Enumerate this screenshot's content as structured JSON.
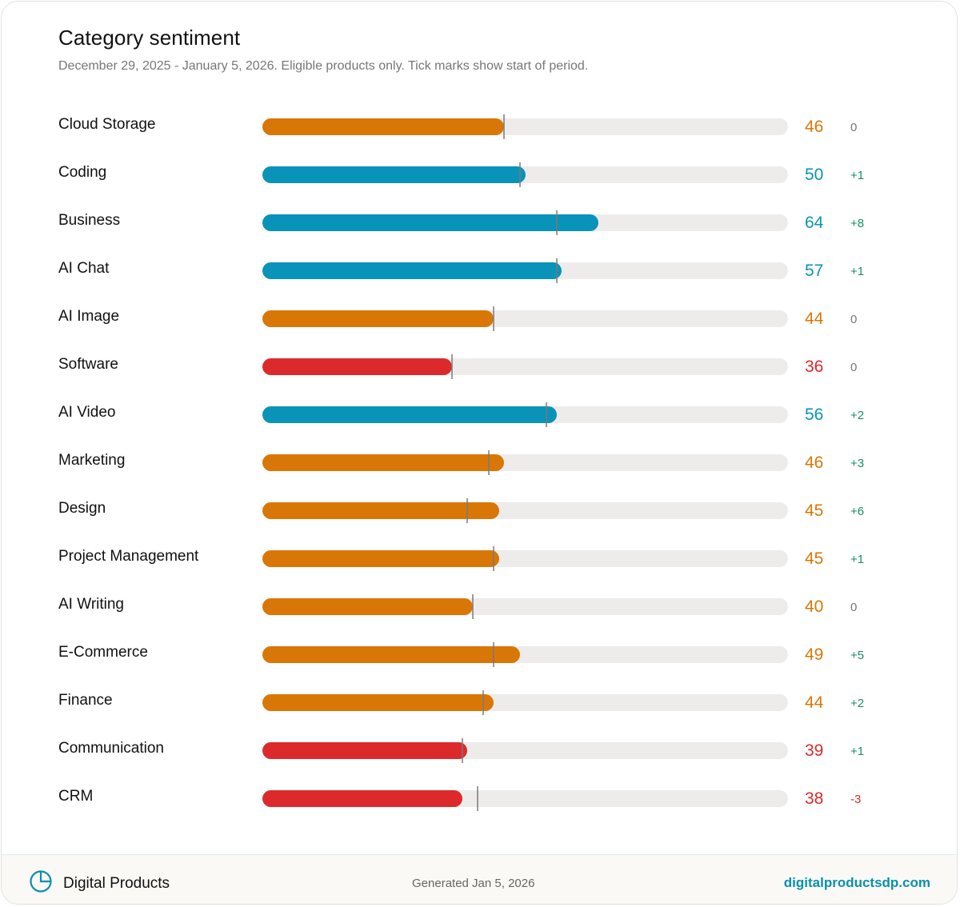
{
  "chart_data": {
    "type": "bar",
    "title": "Category sentiment",
    "subtitle": "December 29, 2025 - January 5, 2026. Eligible products only. Tick marks show start of period.",
    "xlim": [
      0,
      100
    ],
    "orientation": "horizontal",
    "rows": [
      {
        "category": "Cloud Storage",
        "value": 46,
        "delta": "0",
        "start": 46
      },
      {
        "category": "Coding",
        "value": 50,
        "delta": "+1",
        "start": 49
      },
      {
        "category": "Business",
        "value": 64,
        "delta": "+8",
        "start": 56
      },
      {
        "category": "AI Chat",
        "value": 57,
        "delta": "+1",
        "start": 56
      },
      {
        "category": "AI Image",
        "value": 44,
        "delta": "0",
        "start": 44
      },
      {
        "category": "Software",
        "value": 36,
        "delta": "0",
        "start": 36
      },
      {
        "category": "AI Video",
        "value": 56,
        "delta": "+2",
        "start": 54
      },
      {
        "category": "Marketing",
        "value": 46,
        "delta": "+3",
        "start": 43
      },
      {
        "category": "Design",
        "value": 45,
        "delta": "+6",
        "start": 39
      },
      {
        "category": "Project Management",
        "value": 45,
        "delta": "+1",
        "start": 44
      },
      {
        "category": "AI Writing",
        "value": 40,
        "delta": "0",
        "start": 40
      },
      {
        "category": "E-Commerce",
        "value": 49,
        "delta": "+5",
        "start": 44
      },
      {
        "category": "Finance",
        "value": 44,
        "delta": "+2",
        "start": 42
      },
      {
        "category": "Communication",
        "value": 39,
        "delta": "+1",
        "start": 38
      },
      {
        "category": "CRM",
        "value": 38,
        "delta": "-3",
        "start": 41
      }
    ]
  },
  "colors": {
    "negative": "#dc2a2c",
    "neutral": "#d97706",
    "positive": "#0a93b8",
    "delta_up": "#16906b",
    "delta_flat": "#777777",
    "delta_down": "#dc2a2c"
  },
  "footer": {
    "brand_icon": "pie-chart-icon",
    "brand": "Digital Products",
    "generated": "Generated Jan 5, 2026",
    "site": "digitalproductsdp.com"
  }
}
